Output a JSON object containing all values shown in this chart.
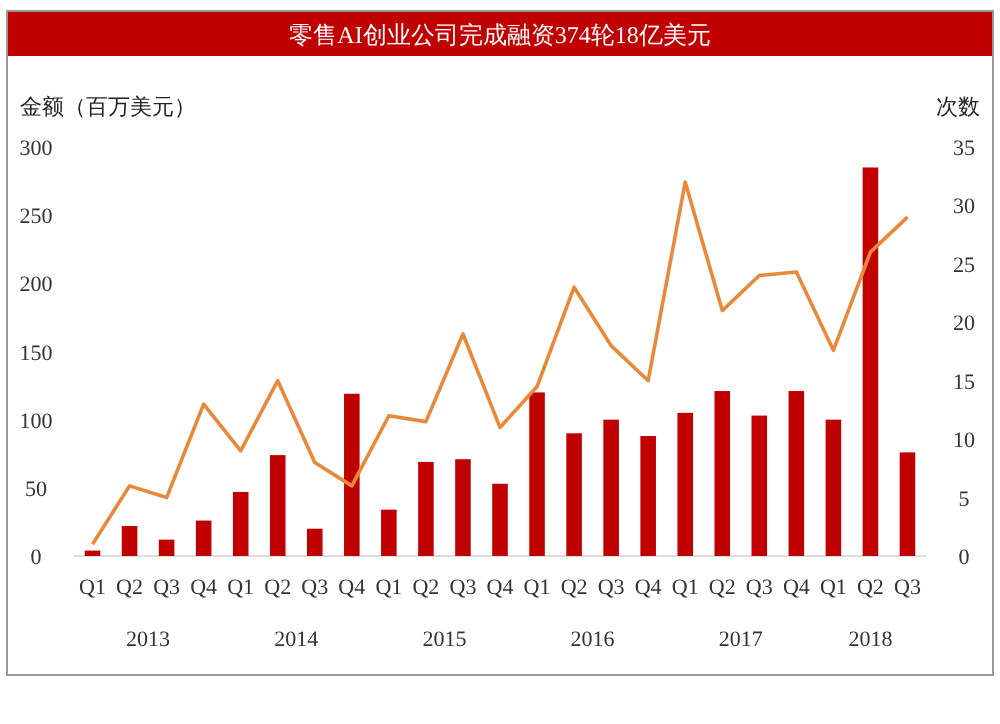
{
  "chart_data": {
    "type": "bar",
    "title": "零售AI创业公司完成融资374轮18亿美元",
    "ylabel": "金额（百万美元）",
    "y2label": "次数",
    "categories": [
      "Q1",
      "Q2",
      "Q3",
      "Q4",
      "Q1",
      "Q2",
      "Q3",
      "Q4",
      "Q1",
      "Q2",
      "Q3",
      "Q4",
      "Q1",
      "Q2",
      "Q3",
      "Q4",
      "Q1",
      "Q2",
      "Q3",
      "Q4",
      "Q1",
      "Q2",
      "Q3"
    ],
    "annotations": [
      "2013",
      "2014",
      "2015",
      "2016",
      "2017",
      "2018"
    ],
    "series": [
      {
        "color": "#c00000",
        "values": [
          4,
          22,
          12,
          26,
          47,
          74,
          20,
          119,
          34,
          69,
          71,
          53,
          120,
          90,
          100,
          88,
          105,
          121,
          103,
          121,
          100,
          285,
          76
        ]
      },
      {
        "type": "line",
        "axis": "y2",
        "color": "#e8883a",
        "values": [
          1,
          6,
          5,
          13,
          9,
          15,
          8,
          6,
          12,
          11.5,
          19,
          11,
          14.5,
          23,
          18,
          15,
          32,
          21,
          24,
          24.3,
          17.6,
          26,
          29
        ]
      }
    ],
    "ylim": [
      0,
      300
    ],
    "yticks": [
      0,
      50,
      100,
      150,
      200,
      250,
      300
    ],
    "y2lim": [
      0,
      35
    ],
    "y2ticks": [
      0,
      5,
      10,
      15,
      20,
      25,
      30,
      35
    ]
  }
}
